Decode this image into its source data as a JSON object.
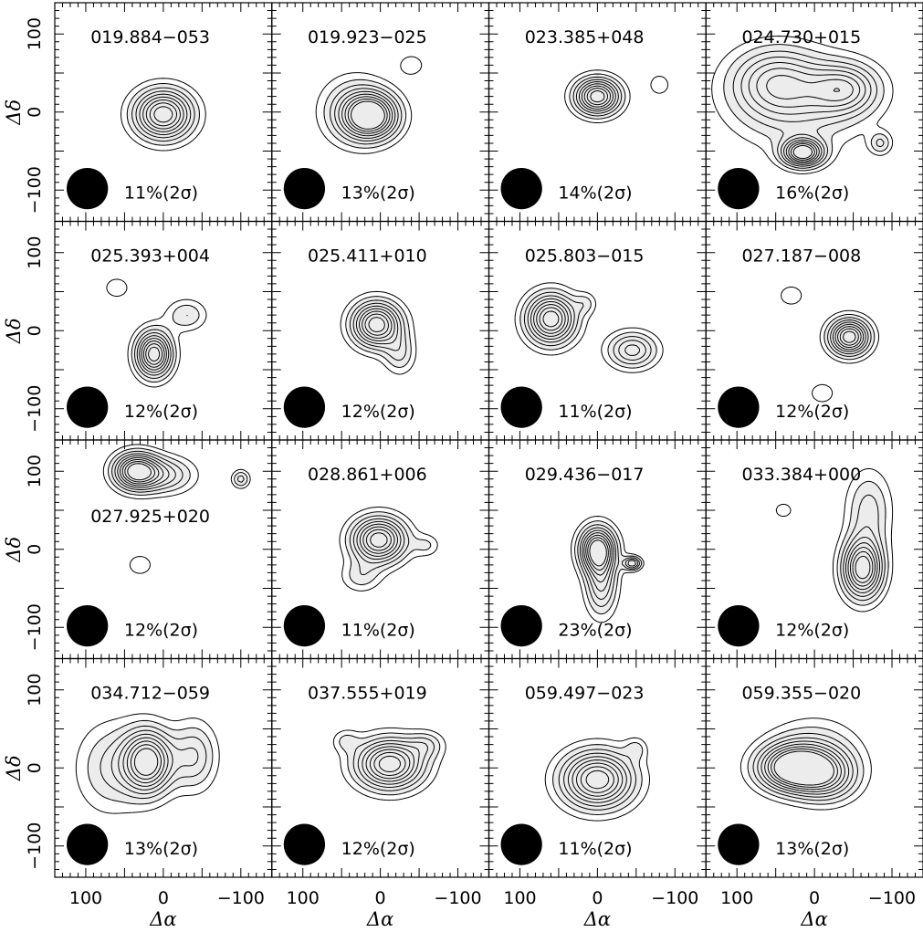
{
  "chart_data": {
    "type": "contour",
    "layout": {
      "rows": 4,
      "cols": 4,
      "shared_axes": true
    },
    "x_axis": {
      "label": "Δα",
      "ticks": [
        100,
        0,
        -100
      ],
      "tick_labels": [
        "100",
        "0",
        "−100"
      ],
      "range": [
        140,
        -140
      ],
      "reversed": true
    },
    "y_axis": {
      "label": "Δδ",
      "ticks": [
        100,
        0,
        -100
      ],
      "tick_labels": [
        "100",
        "0",
        "−100"
      ],
      "range": [
        -140,
        140
      ]
    },
    "beam": {
      "x": 98,
      "y": -98,
      "radius": 13,
      "color": "#000000"
    },
    "contour_fill": "#ececec",
    "panels": [
      {
        "name": "019.884−053",
        "level": "11%(2σ)",
        "sources": [
          {
            "x": 0,
            "y": -3,
            "sx": 26,
            "sy": 22,
            "peak": 1.0
          }
        ]
      },
      {
        "name": "019.923−025",
        "level": "13%(2σ)",
        "sources": [
          {
            "x": 12,
            "y": -5,
            "sx": 24,
            "sy": 20,
            "peak": 1.0
          },
          {
            "x": 35,
            "y": 2,
            "sx": 30,
            "sy": 30,
            "peak": 0.35
          },
          {
            "x": -40,
            "y": 60,
            "sx": 12,
            "sy": 10,
            "peak": 0.2
          }
        ]
      },
      {
        "name": "023.385+048",
        "level": "14%(2σ)",
        "sources": [
          {
            "x": 0,
            "y": 20,
            "sx": 20,
            "sy": 16,
            "peak": 1.0
          },
          {
            "x": -80,
            "y": 35,
            "sx": 10,
            "sy": 10,
            "peak": 0.2
          }
        ]
      },
      {
        "name": "024.730+015",
        "level": "16%(2σ)",
        "sources": [
          {
            "x": 15,
            "y": -52,
            "sx": 18,
            "sy": 12,
            "peak": 1.0
          },
          {
            "x": -40,
            "y": 30,
            "sx": 30,
            "sy": 22,
            "peak": 0.55
          },
          {
            "x": 50,
            "y": 40,
            "sx": 40,
            "sy": 30,
            "peak": 0.5
          },
          {
            "x": 20,
            "y": 10,
            "sx": 60,
            "sy": 40,
            "peak": 0.35
          },
          {
            "x": -85,
            "y": -40,
            "sx": 10,
            "sy": 10,
            "peak": 0.3
          }
        ]
      },
      {
        "name": "025.393+004",
        "level": "12%(2σ)",
        "sources": [
          {
            "x": 12,
            "y": -30,
            "sx": 16,
            "sy": 20,
            "peak": 1.0
          },
          {
            "x": -30,
            "y": 20,
            "sx": 18,
            "sy": 14,
            "peak": 0.3
          },
          {
            "x": 60,
            "y": 55,
            "sx": 12,
            "sy": 10,
            "peak": 0.2
          }
        ]
      },
      {
        "name": "025.411+010",
        "level": "12%(2σ)",
        "sources": [
          {
            "x": 5,
            "y": 8,
            "sx": 22,
            "sy": 20,
            "peak": 1.0
          },
          {
            "x": -25,
            "y": -30,
            "sx": 14,
            "sy": 18,
            "peak": 0.3
          }
        ]
      },
      {
        "name": "025.803−015",
        "level": "11%(2σ)",
        "sources": [
          {
            "x": 60,
            "y": 15,
            "sx": 22,
            "sy": 22,
            "peak": 1.0
          },
          {
            "x": -45,
            "y": -25,
            "sx": 22,
            "sy": 16,
            "peak": 0.55
          },
          {
            "x": 15,
            "y": 35,
            "sx": 10,
            "sy": 10,
            "peak": 0.2
          }
        ]
      },
      {
        "name": "027.187−008",
        "level": "12%(2σ)",
        "sources": [
          {
            "x": -45,
            "y": -8,
            "sx": 18,
            "sy": 16,
            "peak": 1.0
          },
          {
            "x": 30,
            "y": 45,
            "sx": 12,
            "sy": 10,
            "peak": 0.2
          },
          {
            "x": -10,
            "y": -80,
            "sx": 12,
            "sy": 10,
            "peak": 0.2
          }
        ]
      },
      {
        "name": "027.925+020",
        "level": "12%(2σ)",
        "sources": [
          {
            "x": 35,
            "y": 100,
            "sx": 20,
            "sy": 16,
            "peak": 1.0
          },
          {
            "x": -5,
            "y": 95,
            "sx": 25,
            "sy": 16,
            "peak": 0.4
          },
          {
            "x": -100,
            "y": 90,
            "sx": 8,
            "sy": 8,
            "peak": 0.35
          },
          {
            "x": 30,
            "y": -20,
            "sx": 12,
            "sy": 10,
            "peak": 0.2
          }
        ]
      },
      {
        "name": "028.861+006",
        "level": "11%(2σ)",
        "sources": [
          {
            "x": 2,
            "y": 12,
            "sx": 24,
            "sy": 20,
            "peak": 1.0
          },
          {
            "x": 25,
            "y": -35,
            "sx": 18,
            "sy": 14,
            "peak": 0.25
          },
          {
            "x": -60,
            "y": 5,
            "sx": 12,
            "sy": 10,
            "peak": 0.2
          }
        ]
      },
      {
        "name": "029.436−017",
        "level": "23%(2σ)",
        "sources": [
          {
            "x": 0,
            "y": 0,
            "sx": 16,
            "sy": 20,
            "peak": 1.0
          },
          {
            "x": -5,
            "y": -45,
            "sx": 14,
            "sy": 28,
            "peak": 0.5
          },
          {
            "x": -45,
            "y": -18,
            "sx": 8,
            "sy": 6,
            "peak": 0.6
          }
        ]
      },
      {
        "name": "033.384+000",
        "level": "12%(2σ)",
        "sources": [
          {
            "x": -62,
            "y": -25,
            "sx": 18,
            "sy": 26,
            "peak": 1.0
          },
          {
            "x": -70,
            "y": 50,
            "sx": 20,
            "sy": 35,
            "peak": 0.35
          },
          {
            "x": 40,
            "y": 50,
            "sx": 12,
            "sy": 10,
            "peak": 0.15
          }
        ]
      },
      {
        "name": "034.712−059",
        "level": "13%(2σ)",
        "sources": [
          {
            "x": 20,
            "y": 8,
            "sx": 22,
            "sy": 28,
            "peak": 1.0
          },
          {
            "x": -40,
            "y": 15,
            "sx": 20,
            "sy": 30,
            "peak": 0.4
          },
          {
            "x": 70,
            "y": 0,
            "sx": 30,
            "sy": 40,
            "peak": 0.3
          }
        ]
      },
      {
        "name": "037.555+019",
        "level": "12%(2σ)",
        "sources": [
          {
            "x": -12,
            "y": 5,
            "sx": 30,
            "sy": 22,
            "peak": 1.0
          },
          {
            "x": -60,
            "y": 30,
            "sx": 16,
            "sy": 12,
            "peak": 0.25
          },
          {
            "x": 45,
            "y": 35,
            "sx": 12,
            "sy": 10,
            "peak": 0.2
          }
        ]
      },
      {
        "name": "059.497−023",
        "level": "11%(2σ)",
        "sources": [
          {
            "x": 0,
            "y": -15,
            "sx": 32,
            "sy": 25,
            "peak": 1.0
          },
          {
            "x": -50,
            "y": 25,
            "sx": 10,
            "sy": 10,
            "peak": 0.2
          }
        ]
      },
      {
        "name": "059.355−020",
        "level": "13%(2σ)",
        "sources": [
          {
            "x": 30,
            "y": 0,
            "sx": 30,
            "sy": 20,
            "peak": 1.0
          },
          {
            "x": -15,
            "y": -10,
            "sx": 28,
            "sy": 22,
            "peak": 0.6
          },
          {
            "x": 0,
            "y": 20,
            "sx": 40,
            "sy": 30,
            "peak": 0.3
          }
        ]
      }
    ]
  }
}
